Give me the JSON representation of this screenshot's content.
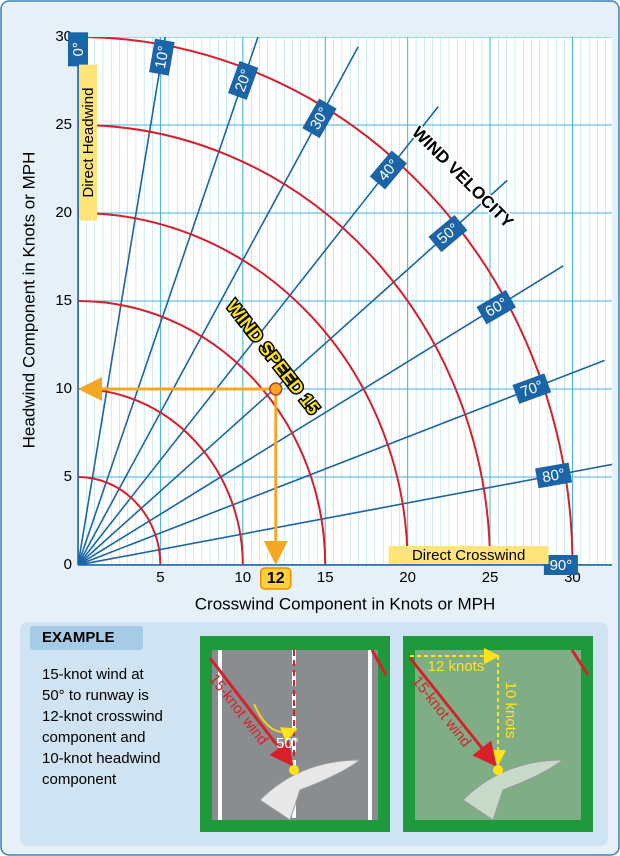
{
  "chart_data": {
    "type": "crosswind",
    "xlabel": "Crosswind Component in Knots or MPH",
    "ylabel": "Headwind Component in Knots or MPH",
    "xlim": [
      0,
      32.4
    ],
    "ylim": [
      0,
      30
    ],
    "xticks": [
      5,
      10,
      15,
      20,
      25,
      30
    ],
    "yticks": [
      0,
      5,
      10,
      15,
      20,
      25,
      30
    ],
    "grid": true,
    "wind_speeds": [
      5,
      10,
      15,
      20,
      25,
      30
    ],
    "arc_color": "#d7202a",
    "radial_color": "#1b64a8",
    "angles": [
      {
        "value": 0,
        "label": "0°"
      },
      {
        "value": 10,
        "label": "10°"
      },
      {
        "value": 20,
        "label": "20°"
      },
      {
        "value": 30,
        "label": "30°"
      },
      {
        "value": 40,
        "label": "40°"
      },
      {
        "value": 50,
        "label": "50°"
      },
      {
        "value": 60,
        "label": "60°"
      },
      {
        "value": 70,
        "label": "70°"
      },
      {
        "value": 80,
        "label": "80°"
      },
      {
        "value": 90,
        "label": "90°"
      }
    ],
    "annotations": {
      "wind_velocity": "WIND VELOCITY",
      "wind_speed": "WIND SPEED 15",
      "direct_headwind": "Direct Headwind",
      "direct_crosswind": "Direct Crosswind"
    },
    "example_point": {
      "crosswind": {
        "value": 12,
        "label": "12"
      },
      "headwind": 10,
      "color": "#f5a623"
    }
  },
  "example": {
    "title": "EXAMPLE",
    "lines": [
      "15-knot wind at",
      "50° to runway is",
      "12-knot crosswind",
      "component and",
      "10-knot headwind",
      "component"
    ],
    "wind_label_1": "15-knot wind",
    "angle_label": "50°",
    "wind_label_2": "15-knot wind",
    "crosswind_label": "12 knots",
    "headwind_label": "10 knots"
  }
}
